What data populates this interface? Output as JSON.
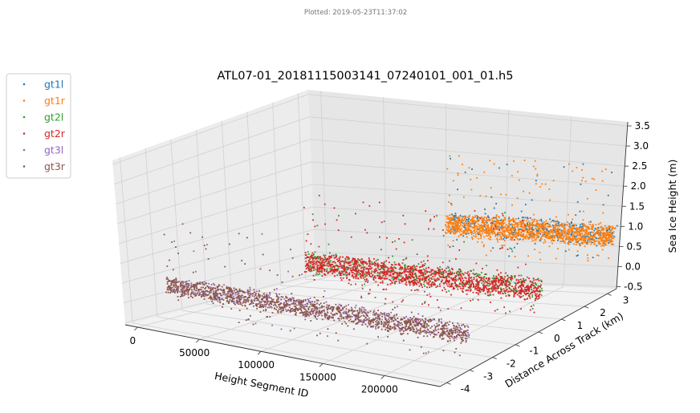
{
  "stamp": "Plotted: 2019-05-23T11:37:02",
  "chart_data": {
    "type": "scatter",
    "title": "ATL07-01_20181115003141_07240101_001_01.h5",
    "xlabel": "Height Segment ID",
    "ylabel": "Distance Across Track (km)",
    "zlabel": "Sea Ice Height (m)",
    "x_ticks": [
      "0",
      "50000",
      "100000",
      "150000",
      "200000"
    ],
    "y_ticks": [
      "-4",
      "-3",
      "-2",
      "-1",
      "0",
      "1",
      "2",
      "3"
    ],
    "z_ticks": [
      "-0.5",
      "0.0",
      "0.5",
      "1.0",
      "1.5",
      "2.0",
      "2.5",
      "3.0",
      "3.5"
    ],
    "xlim": [
      -10000,
      245000
    ],
    "ylim": [
      -4.3,
      3.4
    ],
    "zlim": [
      -0.55,
      3.6
    ],
    "legend_position": "upper-left-outside",
    "series": [
      {
        "name": "gt1l",
        "color": "#1f77b4",
        "y": 3.05,
        "x_range": [
          110000,
          248000
        ],
        "typical_height": [
          0.6,
          1.2
        ]
      },
      {
        "name": "gt1r",
        "color": "#ff7f0e",
        "y": 2.95,
        "x_range": [
          110000,
          248000
        ],
        "typical_height": [
          0.6,
          1.2
        ]
      },
      {
        "name": "gt2l",
        "color": "#2ca02c",
        "y": -0.05,
        "x_range": [
          55000,
          248000
        ],
        "typical_height": [
          0.2,
          0.8
        ]
      },
      {
        "name": "gt2r",
        "color": "#d62728",
        "y": -0.15,
        "x_range": [
          55000,
          248000
        ],
        "typical_height": [
          0.2,
          0.8
        ]
      },
      {
        "name": "gt3l",
        "color": "#9467bd",
        "y": -3.2,
        "x_range": [
          5000,
          248000
        ],
        "typical_height": [
          0.1,
          0.6
        ]
      },
      {
        "name": "gt3r",
        "color": "#8c564b",
        "y": -3.3,
        "x_range": [
          5000,
          248000
        ],
        "typical_height": [
          0.1,
          0.6
        ]
      }
    ]
  }
}
